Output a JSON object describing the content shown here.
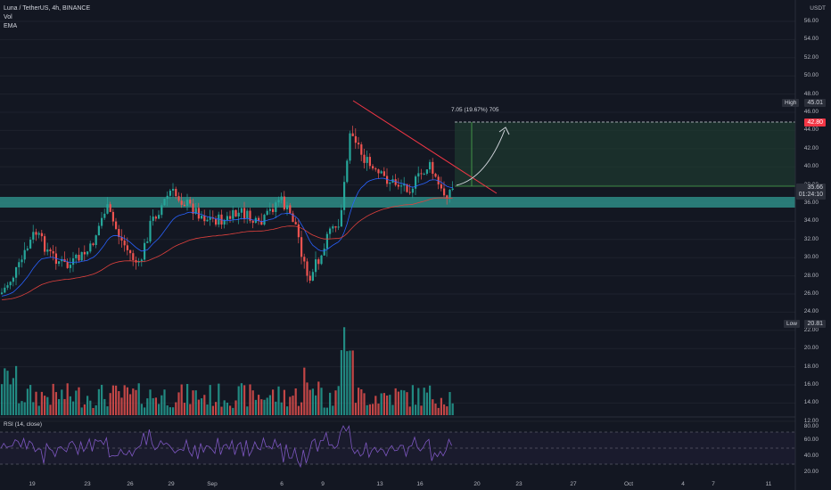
{
  "header": {
    "symbol_line": "Luna / TetherUS, 4h, BINANCE",
    "vol_label": "Vol",
    "ema_label": "EMA"
  },
  "yaxis": {
    "currency": "USDT",
    "labels": [
      "56.00",
      "54.00",
      "52.00",
      "50.00",
      "48.00",
      "46.00",
      "44.00",
      "42.00",
      "40.00",
      "38.00",
      "36.00",
      "34.00",
      "32.00",
      "30.00",
      "28.00",
      "26.00",
      "24.00",
      "22.00",
      "20.00",
      "18.00",
      "16.00",
      "14.00",
      "12.00"
    ]
  },
  "tags": {
    "high_label": "High",
    "high_value": "45.01",
    "target_value": "42.80",
    "current_price": "35.66",
    "countdown": "01:24:10",
    "low_label": "Low",
    "low_value": "20.81"
  },
  "measure": {
    "text": "7.05 (19.67%) 705"
  },
  "rsi": {
    "label": "RSI (14, close)",
    "levels": [
      "80.00",
      "60.00",
      "40.00",
      "20.00"
    ]
  },
  "xaxis": {
    "labels": [
      "19",
      "23",
      "26",
      "29",
      "Sep",
      "6",
      "9",
      "13",
      "16",
      "20",
      "23",
      "27",
      "Oct",
      "4",
      "7",
      "11"
    ]
  },
  "colors": {
    "background": "#131722",
    "bull": "#26a69a",
    "bear": "#ef5350",
    "zone": "#2e8c86",
    "target_box": "#1e3a2f",
    "trend": "#f23645",
    "ema_fast": "#2962ff",
    "ema_slow": "#e0413d",
    "rsi": "#7e57c2"
  }
}
